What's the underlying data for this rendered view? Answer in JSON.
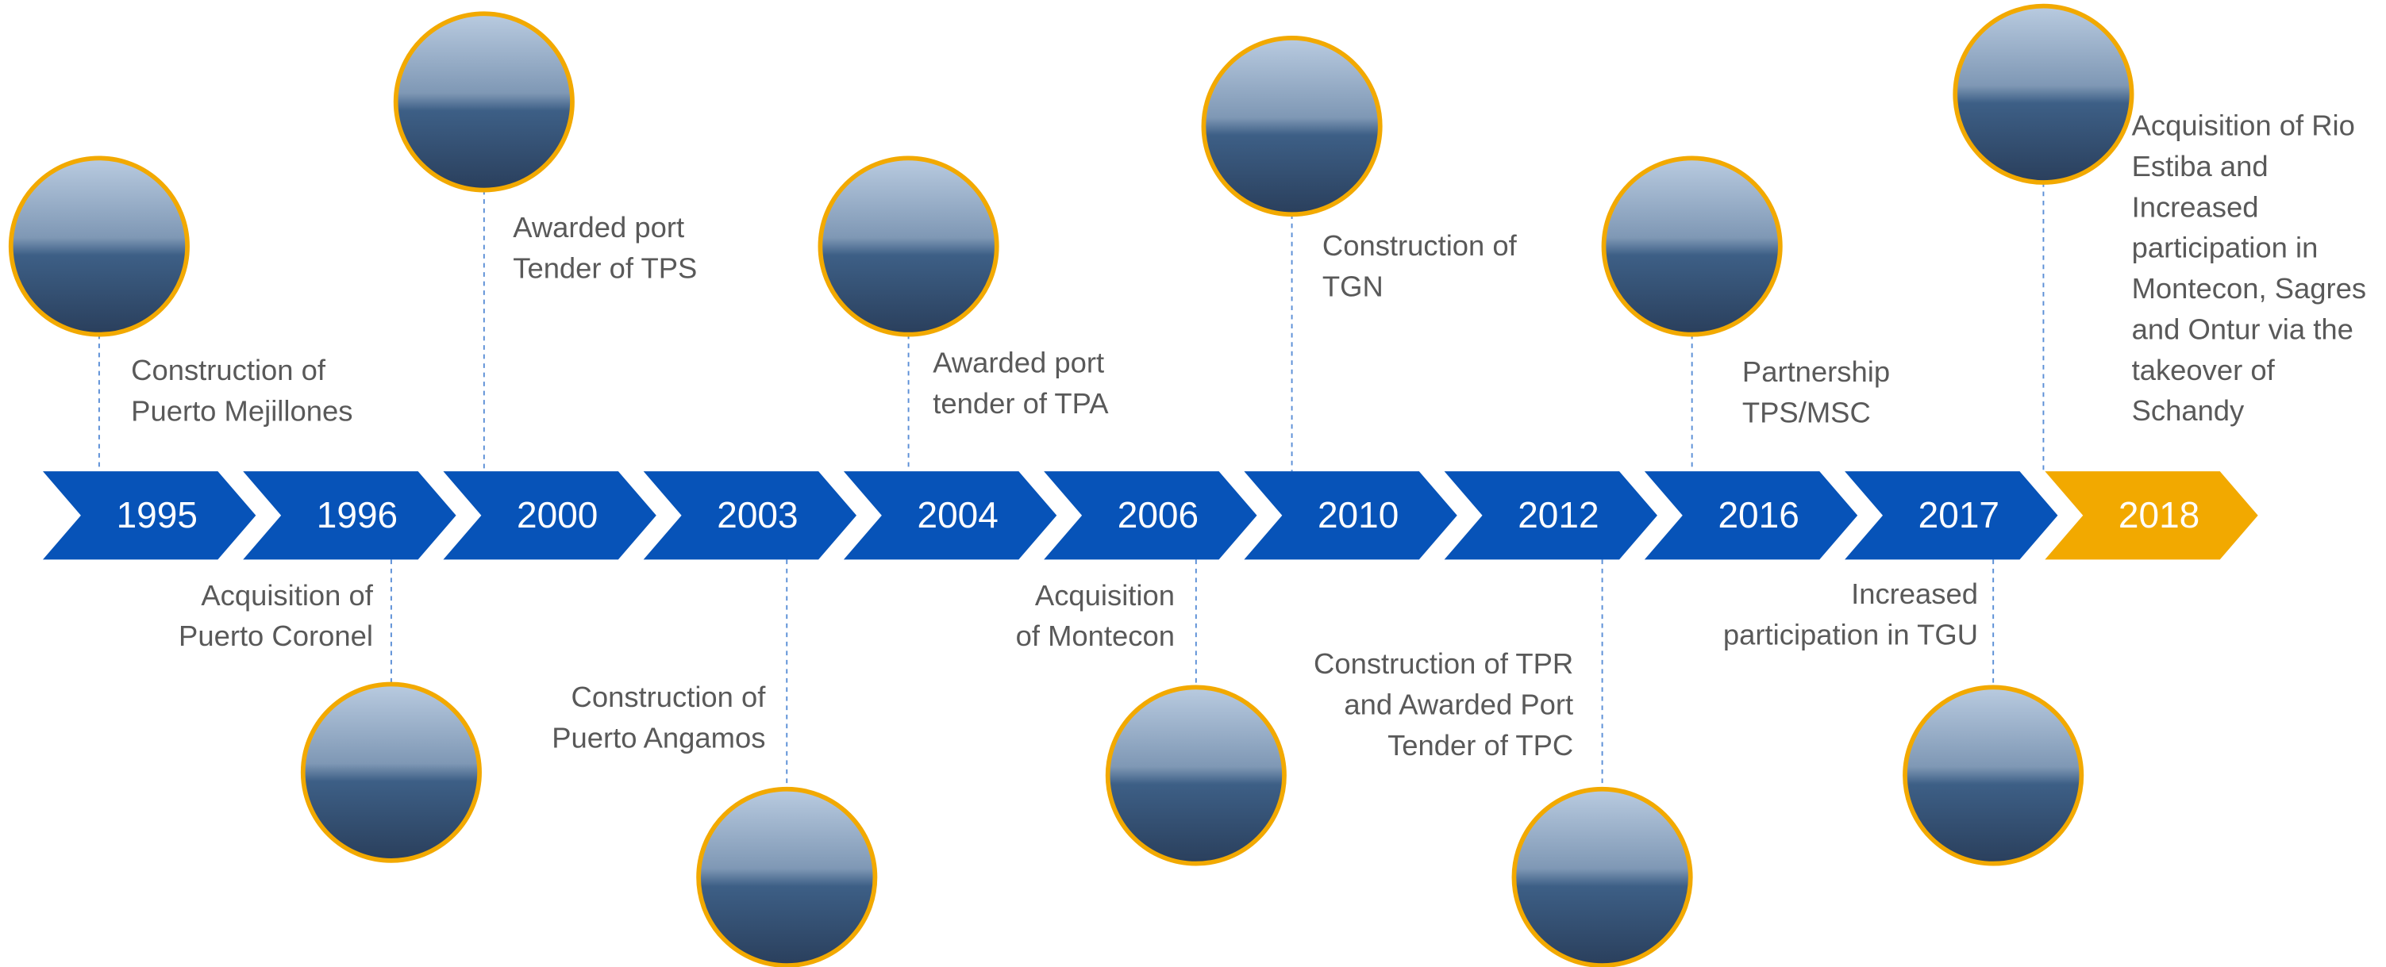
{
  "timeline": {
    "events": [
      {
        "year": "1995",
        "lines": [
          "Construction of",
          "Puerto Mejillones"
        ]
      },
      {
        "year": "1996",
        "lines": [
          "Acquisition of",
          "Puerto Coronel"
        ]
      },
      {
        "year": "2000",
        "lines": [
          "Awarded port",
          "Tender of TPS"
        ]
      },
      {
        "year": "2003",
        "lines": [
          "Construction of",
          "Puerto Angamos"
        ]
      },
      {
        "year": "2004",
        "lines": [
          "Awarded port",
          "tender of TPA"
        ]
      },
      {
        "year": "2006",
        "lines": [
          "Acquisition",
          "of Montecon"
        ]
      },
      {
        "year": "2010",
        "lines": [
          "Construction of",
          "TGN"
        ]
      },
      {
        "year": "2012",
        "lines": [
          "Construction of TPR",
          "and Awarded Port",
          "Tender of TPC"
        ]
      },
      {
        "year": "2016",
        "lines": [
          "Partnership",
          "TPS/MSC"
        ]
      },
      {
        "year": "2017",
        "lines": [
          "Increased",
          "participation in TGU"
        ]
      },
      {
        "year": "2018",
        "lines": [
          "Acquisition of Rio",
          "Estiba and",
          "Increased",
          "participation in",
          "Montecon, Sagres",
          "and Ontur via the",
          "takeover of",
          "Schandy"
        ]
      }
    ]
  }
}
